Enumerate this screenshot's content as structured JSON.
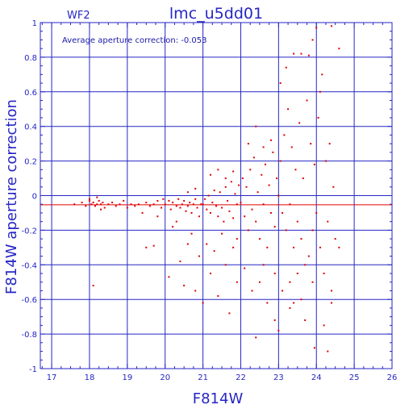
{
  "chart_data": {
    "type": "scatter",
    "title": "lmc_u5dd01",
    "corner_label": "WF2",
    "annotation": "Average aperture correction: -0.053",
    "xlabel": "F814W",
    "ylabel": "F814W aperture correction",
    "xlim": [
      16.7,
      26
    ],
    "ylim": [
      -1,
      1
    ],
    "x_ticks": [
      17,
      18,
      19,
      20,
      21,
      22,
      23,
      24,
      25,
      26
    ],
    "y_ticks": [
      -1,
      -0.8,
      -0.6,
      -0.4,
      -0.2,
      0,
      0.2,
      0.4,
      0.6,
      0.8,
      1
    ],
    "y_tick_labels": [
      "-1",
      "-0.8",
      "-0.6",
      "-0.4",
      "-0.2",
      "0",
      "0.2",
      "0.4",
      "0.6",
      "0.8",
      "1"
    ],
    "grid": true,
    "reference_line_y": -0.053,
    "colors": {
      "axes": "#2626c4",
      "points": "#e00000",
      "reference_line": "#e00000"
    },
    "series": [
      {
        "points": [
          [
            17.6,
            -0.05
          ],
          [
            17.8,
            -0.04
          ],
          [
            17.9,
            -0.06
          ],
          [
            18.0,
            -0.03
          ],
          [
            18.05,
            -0.05
          ],
          [
            18.1,
            -0.04
          ],
          [
            18.15,
            -0.06
          ],
          [
            18.2,
            -0.05
          ],
          [
            18.25,
            -0.03
          ],
          [
            18.3,
            -0.05
          ],
          [
            18.35,
            -0.04
          ],
          [
            18.4,
            -0.07
          ],
          [
            18.5,
            -0.05
          ],
          [
            18.6,
            -0.04
          ],
          [
            18.7,
            -0.06
          ],
          [
            18.8,
            -0.05
          ],
          [
            18.9,
            -0.03
          ],
          [
            19.0,
            -0.07
          ],
          [
            19.1,
            -0.05
          ],
          [
            19.2,
            -0.06
          ],
          [
            18.1,
            -0.52
          ],
          [
            18.3,
            -0.08
          ],
          [
            18.0,
            -0.02
          ],
          [
            18.2,
            -0.01
          ],
          [
            19.3,
            -0.05
          ],
          [
            19.5,
            -0.04
          ],
          [
            19.6,
            -0.06
          ],
          [
            19.7,
            -0.05
          ],
          [
            19.8,
            -0.03
          ],
          [
            19.9,
            -0.07
          ],
          [
            19.5,
            -0.3
          ],
          [
            19.7,
            -0.29
          ],
          [
            19.4,
            -0.1
          ],
          [
            19.8,
            -0.12
          ],
          [
            19.95,
            -0.02
          ],
          [
            20.0,
            -0.05
          ],
          [
            20.1,
            -0.03
          ],
          [
            20.15,
            -0.08
          ],
          [
            20.2,
            -0.04
          ],
          [
            20.3,
            -0.06
          ],
          [
            20.35,
            -0.02
          ],
          [
            20.4,
            -0.07
          ],
          [
            20.45,
            -0.05
          ],
          [
            20.5,
            -0.03
          ],
          [
            20.55,
            -0.09
          ],
          [
            20.6,
            -0.06
          ],
          [
            20.65,
            -0.04
          ],
          [
            20.7,
            -0.1
          ],
          [
            20.75,
            -0.05
          ],
          [
            20.8,
            -0.02
          ],
          [
            20.85,
            -0.07
          ],
          [
            20.9,
            -0.12
          ],
          [
            20.95,
            -0.05
          ],
          [
            20.1,
            -0.47
          ],
          [
            20.4,
            -0.38
          ],
          [
            20.5,
            -0.52
          ],
          [
            20.6,
            -0.28
          ],
          [
            20.7,
            -0.22
          ],
          [
            20.8,
            -0.55
          ],
          [
            20.9,
            -0.35
          ],
          [
            20.3,
            -0.15
          ],
          [
            20.6,
            0.02
          ],
          [
            20.8,
            0.04
          ],
          [
            20.2,
            -0.18
          ],
          [
            21.0,
            -0.05
          ],
          [
            21.05,
            -0.02
          ],
          [
            21.1,
            -0.08
          ],
          [
            21.15,
            0.0
          ],
          [
            21.2,
            -0.1
          ],
          [
            21.25,
            -0.04
          ],
          [
            21.3,
            0.03
          ],
          [
            21.35,
            -0.06
          ],
          [
            21.4,
            -0.12
          ],
          [
            21.45,
            0.02
          ],
          [
            21.5,
            -0.07
          ],
          [
            21.55,
            -0.15
          ],
          [
            21.6,
            0.05
          ],
          [
            21.65,
            -0.03
          ],
          [
            21.7,
            -0.09
          ],
          [
            21.75,
            0.08
          ],
          [
            21.8,
            -0.13
          ],
          [
            21.85,
            0.01
          ],
          [
            21.9,
            -0.05
          ],
          [
            21.95,
            0.06
          ],
          [
            21.0,
            -0.62
          ],
          [
            21.1,
            -0.28
          ],
          [
            21.2,
            -0.45
          ],
          [
            21.3,
            -0.32
          ],
          [
            21.4,
            -0.58
          ],
          [
            21.5,
            -0.22
          ],
          [
            21.6,
            -0.4
          ],
          [
            21.7,
            -0.68
          ],
          [
            21.8,
            -0.3
          ],
          [
            21.9,
            -0.25
          ],
          [
            21.2,
            0.12
          ],
          [
            21.4,
            0.15
          ],
          [
            21.6,
            0.1
          ],
          [
            21.8,
            0.14
          ],
          [
            21.9,
            -0.5
          ],
          [
            22.0,
            -0.04
          ],
          [
            22.05,
            0.1
          ],
          [
            22.1,
            -0.12
          ],
          [
            22.15,
            0.05
          ],
          [
            22.2,
            -0.2
          ],
          [
            22.25,
            0.15
          ],
          [
            22.3,
            -0.08
          ],
          [
            22.35,
            0.22
          ],
          [
            22.4,
            -0.15
          ],
          [
            22.45,
            0.02
          ],
          [
            22.5,
            -0.25
          ],
          [
            22.55,
            0.12
          ],
          [
            22.6,
            -0.05
          ],
          [
            22.65,
            0.18
          ],
          [
            22.7,
            -0.3
          ],
          [
            22.75,
            0.06
          ],
          [
            22.8,
            -0.1
          ],
          [
            22.85,
            0.25
          ],
          [
            22.9,
            -0.18
          ],
          [
            22.95,
            0.1
          ],
          [
            22.1,
            -0.42
          ],
          [
            22.3,
            -0.55
          ],
          [
            22.5,
            -0.5
          ],
          [
            22.7,
            -0.62
          ],
          [
            22.9,
            -0.45
          ],
          [
            22.2,
            0.3
          ],
          [
            22.4,
            0.4
          ],
          [
            22.6,
            0.28
          ],
          [
            22.8,
            0.32
          ],
          [
            22.4,
            -0.82
          ],
          [
            22.6,
            -0.4
          ],
          [
            22.9,
            -0.72
          ],
          [
            23.0,
            0.0
          ],
          [
            23.05,
            0.2
          ],
          [
            23.1,
            -0.1
          ],
          [
            23.15,
            0.35
          ],
          [
            23.2,
            -0.2
          ],
          [
            23.25,
            0.5
          ],
          [
            23.3,
            -0.05
          ],
          [
            23.35,
            0.28
          ],
          [
            23.4,
            -0.3
          ],
          [
            23.45,
            0.15
          ],
          [
            23.5,
            -0.15
          ],
          [
            23.55,
            0.42
          ],
          [
            23.6,
            -0.25
          ],
          [
            23.65,
            0.1
          ],
          [
            23.7,
            -0.4
          ],
          [
            23.75,
            0.55
          ],
          [
            23.8,
            -0.35
          ],
          [
            23.85,
            0.3
          ],
          [
            23.9,
            -0.2
          ],
          [
            23.95,
            0.18
          ],
          [
            23.05,
            0.65
          ],
          [
            23.2,
            0.74
          ],
          [
            23.4,
            0.82
          ],
          [
            23.6,
            0.82
          ],
          [
            23.8,
            0.81
          ],
          [
            23.1,
            -0.55
          ],
          [
            23.3,
            -0.5
          ],
          [
            23.4,
            -0.62
          ],
          [
            23.6,
            -0.6
          ],
          [
            23.7,
            -0.72
          ],
          [
            23.9,
            -0.5
          ],
          [
            23.0,
            -0.78
          ],
          [
            23.3,
            -0.65
          ],
          [
            23.5,
            -0.45
          ],
          [
            23.9,
            0.9
          ],
          [
            24.0,
            -0.1
          ],
          [
            24.05,
            0.45
          ],
          [
            24.1,
            -0.3
          ],
          [
            24.15,
            0.7
          ],
          [
            24.2,
            -0.45
          ],
          [
            24.25,
            0.2
          ],
          [
            24.3,
            -0.15
          ],
          [
            24.35,
            0.3
          ],
          [
            24.4,
            -0.55
          ],
          [
            24.45,
            0.05
          ],
          [
            24.0,
            0.97
          ],
          [
            24.4,
            0.98
          ],
          [
            24.6,
            0.85
          ],
          [
            24.5,
            -0.25
          ],
          [
            24.6,
            -0.3
          ],
          [
            24.4,
            -0.62
          ],
          [
            24.3,
            -0.9
          ],
          [
            23.95,
            -0.88
          ],
          [
            24.1,
            0.6
          ],
          [
            24.2,
            -0.75
          ]
        ]
      }
    ]
  }
}
